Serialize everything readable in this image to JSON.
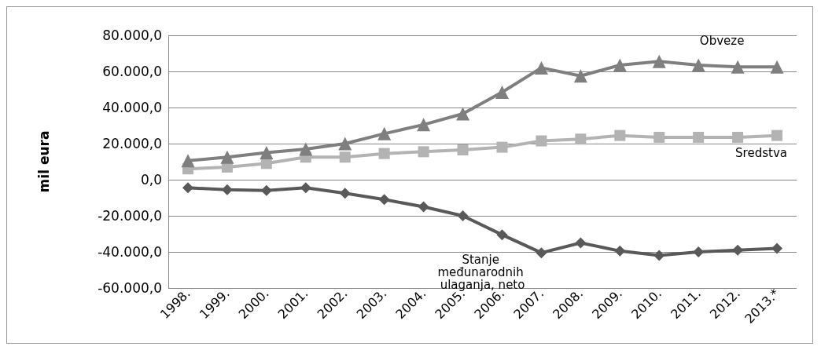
{
  "chart_data": {
    "type": "line",
    "ylabel": "mil eura",
    "categories": [
      "1998.",
      "1999.",
      "2000.",
      "2001.",
      "2002.",
      "2003.",
      "2004.",
      "2005.",
      "2006.",
      "2007.",
      "2008.",
      "2009.",
      "2010.",
      "2011.",
      "2012.",
      "2013.*"
    ],
    "series": [
      {
        "name": "Obveze",
        "color": "#7f7f7f",
        "marker": "triangle",
        "values": [
          10500,
          12500,
          15000,
          17000,
          20000,
          25500,
          30500,
          36500,
          48500,
          62000,
          57500,
          63500,
          65500,
          63500,
          62500,
          62500
        ]
      },
      {
        "name": "Sredstva",
        "color": "#b3b3b3",
        "marker": "square",
        "values": [
          6000,
          7000,
          9000,
          12500,
          12500,
          14500,
          15500,
          16500,
          18000,
          21500,
          22500,
          24500,
          23500,
          23500,
          23500,
          24500
        ]
      },
      {
        "name": "Stanje međunarodnih ulaganja, neto",
        "color": "#595959",
        "marker": "diamond",
        "values": [
          -4500,
          -5500,
          -6000,
          -4500,
          -7500,
          -11000,
          -15000,
          -20000,
          -30500,
          -40500,
          -35000,
          -39500,
          -42000,
          -40000,
          -39000,
          -38000
        ]
      }
    ],
    "ylim": [
      -60000,
      80000
    ],
    "yticks": [
      {
        "value": -60000,
        "label": "-60.000,0"
      },
      {
        "value": -40000,
        "label": "-40.000,0"
      },
      {
        "value": -20000,
        "label": "-20.000,0"
      },
      {
        "value": 0,
        "label": "0,0"
      },
      {
        "value": 20000,
        "label": "20.000,0"
      },
      {
        "value": 40000,
        "label": "40.000,0"
      },
      {
        "value": 60000,
        "label": "60.000,0"
      },
      {
        "value": 80000,
        "label": "80.000,0"
      }
    ],
    "grid": "y",
    "legend": false,
    "line_style": "solid"
  }
}
